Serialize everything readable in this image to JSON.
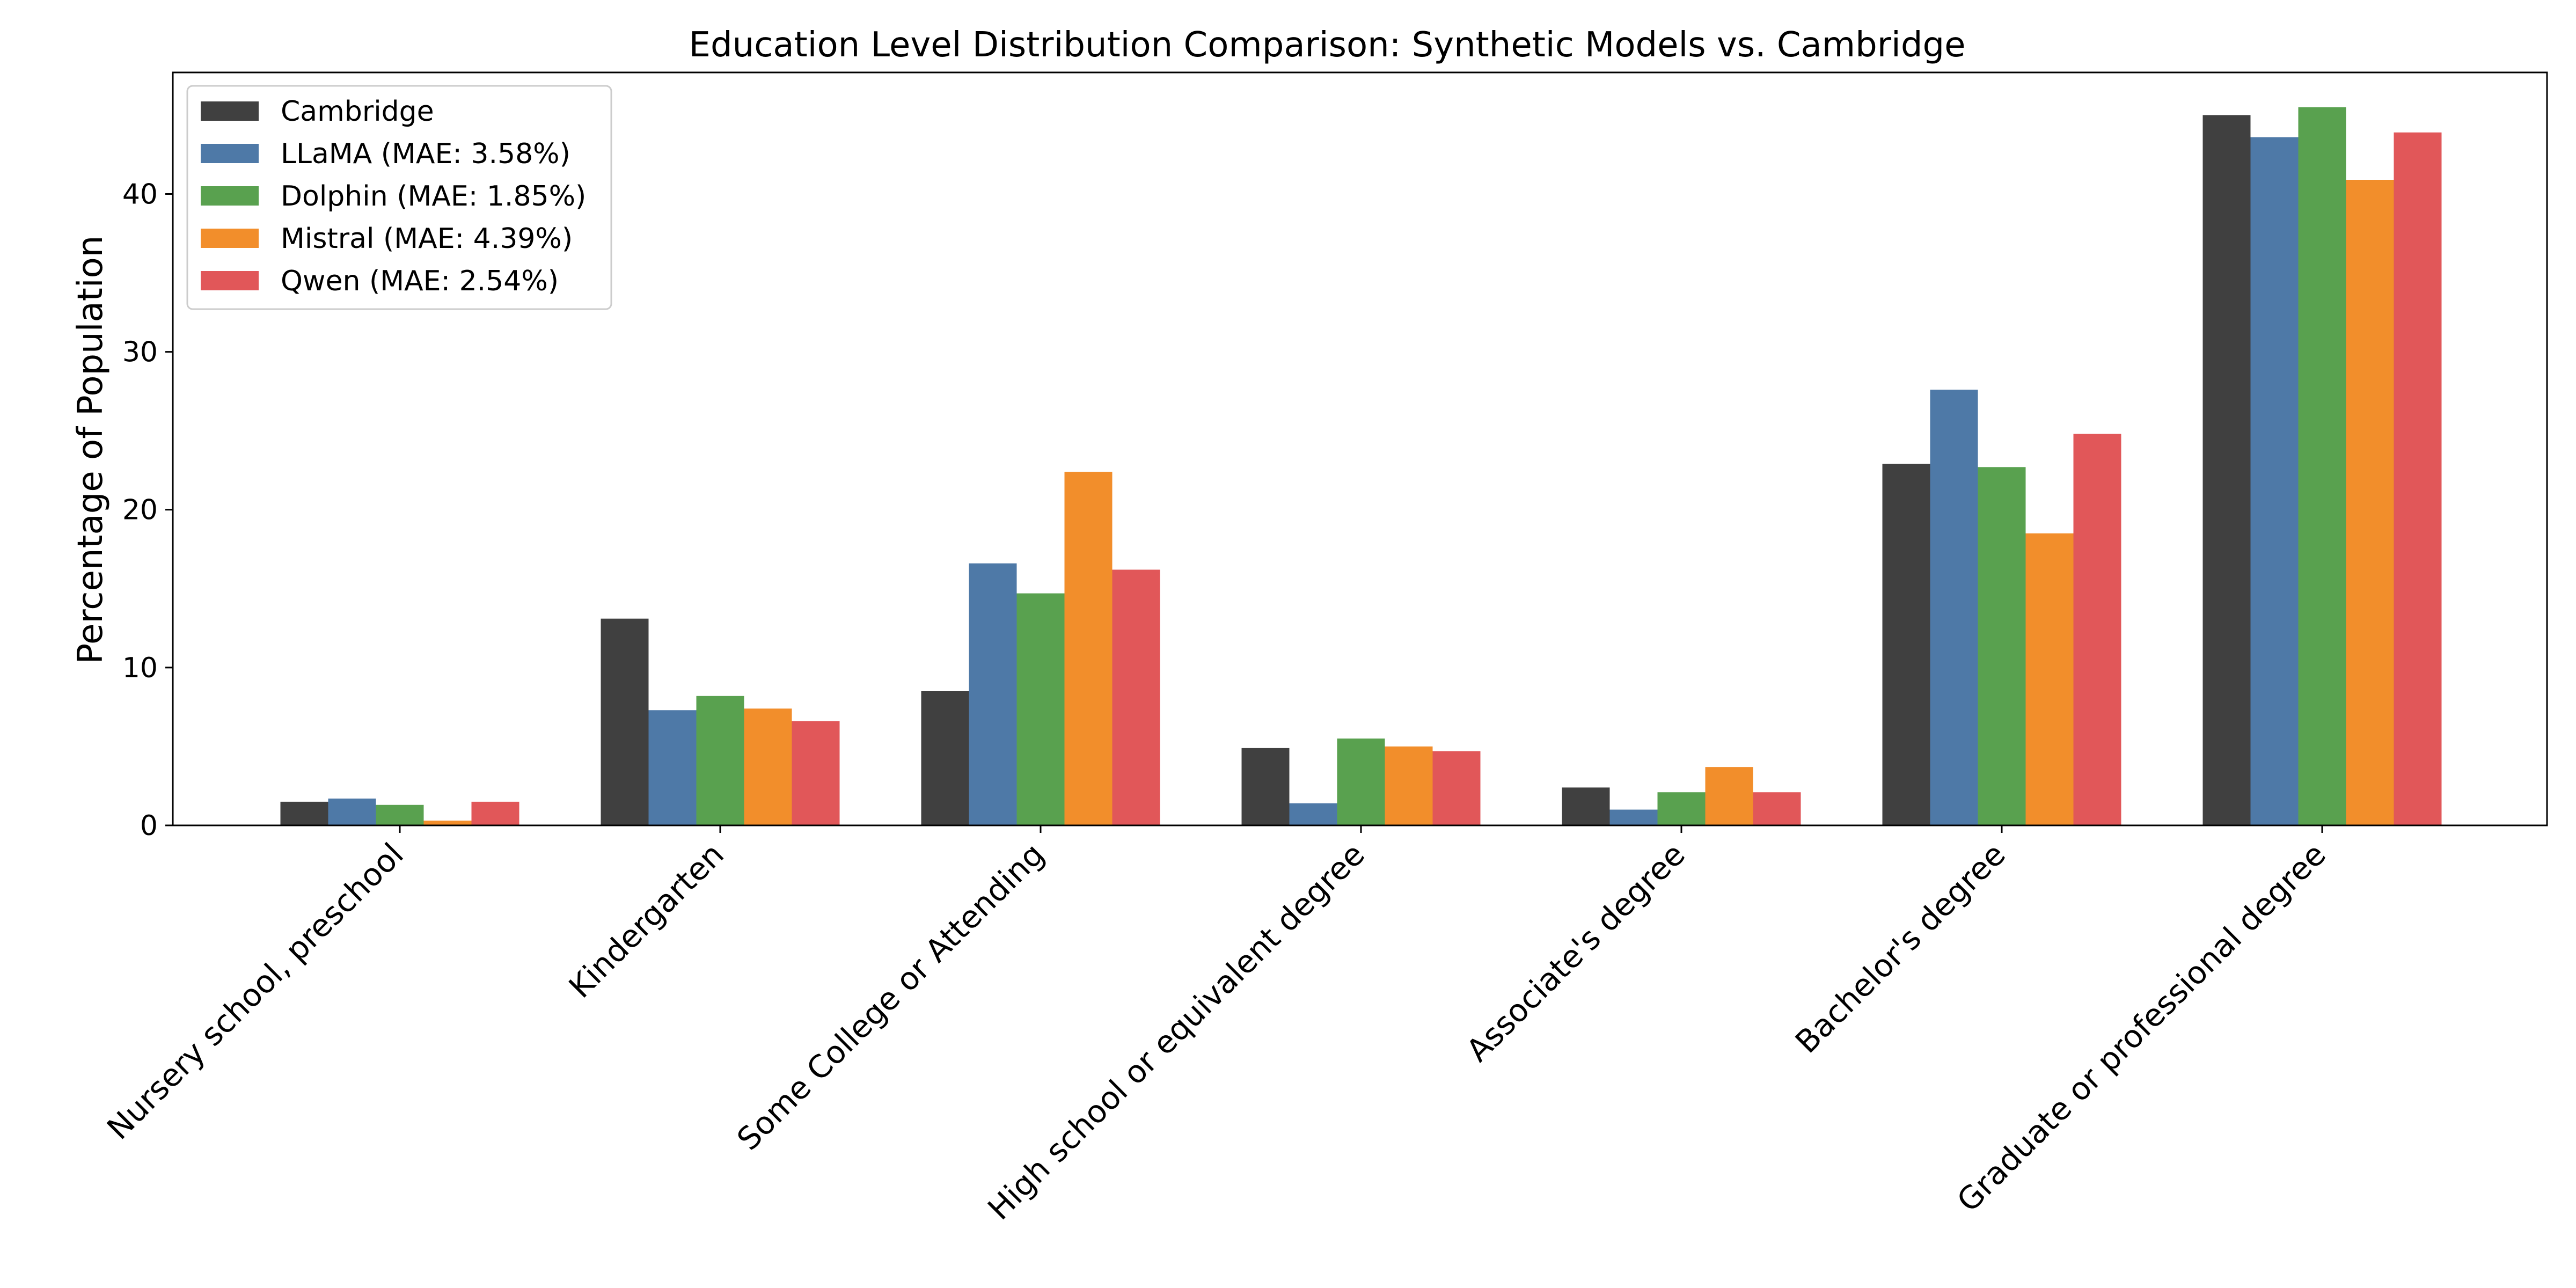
{
  "chart_data": {
    "type": "bar",
    "title": "Education Level Distribution Comparison: Synthetic Models vs. Cambridge",
    "xlabel": "",
    "ylabel": "Percentage of Population",
    "ylim": [
      0,
      47.7
    ],
    "yticks": [
      0,
      10,
      20,
      30,
      40
    ],
    "grid": false,
    "legend_position": "top-left",
    "categories": [
      "Nursery school, preschool",
      "Kindergarten",
      "Some College or Attending",
      "High school or equivalent degree",
      "Associate's degree",
      "Bachelor's degree",
      "Graduate or professional degree"
    ],
    "series": [
      {
        "name": "Cambridge",
        "color": "#404040",
        "values": [
          1.5,
          13.1,
          8.5,
          4.9,
          2.4,
          22.9,
          45.0
        ]
      },
      {
        "name": "LLaMA (MAE: 3.58%)",
        "color": "#4e79a7",
        "values": [
          1.7,
          7.3,
          16.6,
          1.4,
          1.0,
          27.6,
          43.6
        ]
      },
      {
        "name": "Dolphin (MAE: 1.85%)",
        "color": "#59a14f",
        "values": [
          1.3,
          8.2,
          14.7,
          5.5,
          2.1,
          22.7,
          45.5
        ]
      },
      {
        "name": "Mistral (MAE: 4.39%)",
        "color": "#f28e2b",
        "values": [
          0.3,
          7.4,
          22.4,
          5.0,
          3.7,
          18.5,
          40.9
        ]
      },
      {
        "name": "Qwen (MAE: 2.54%)",
        "color": "#e15759",
        "values": [
          1.5,
          6.6,
          16.2,
          4.7,
          2.1,
          24.8,
          43.9
        ]
      }
    ]
  }
}
